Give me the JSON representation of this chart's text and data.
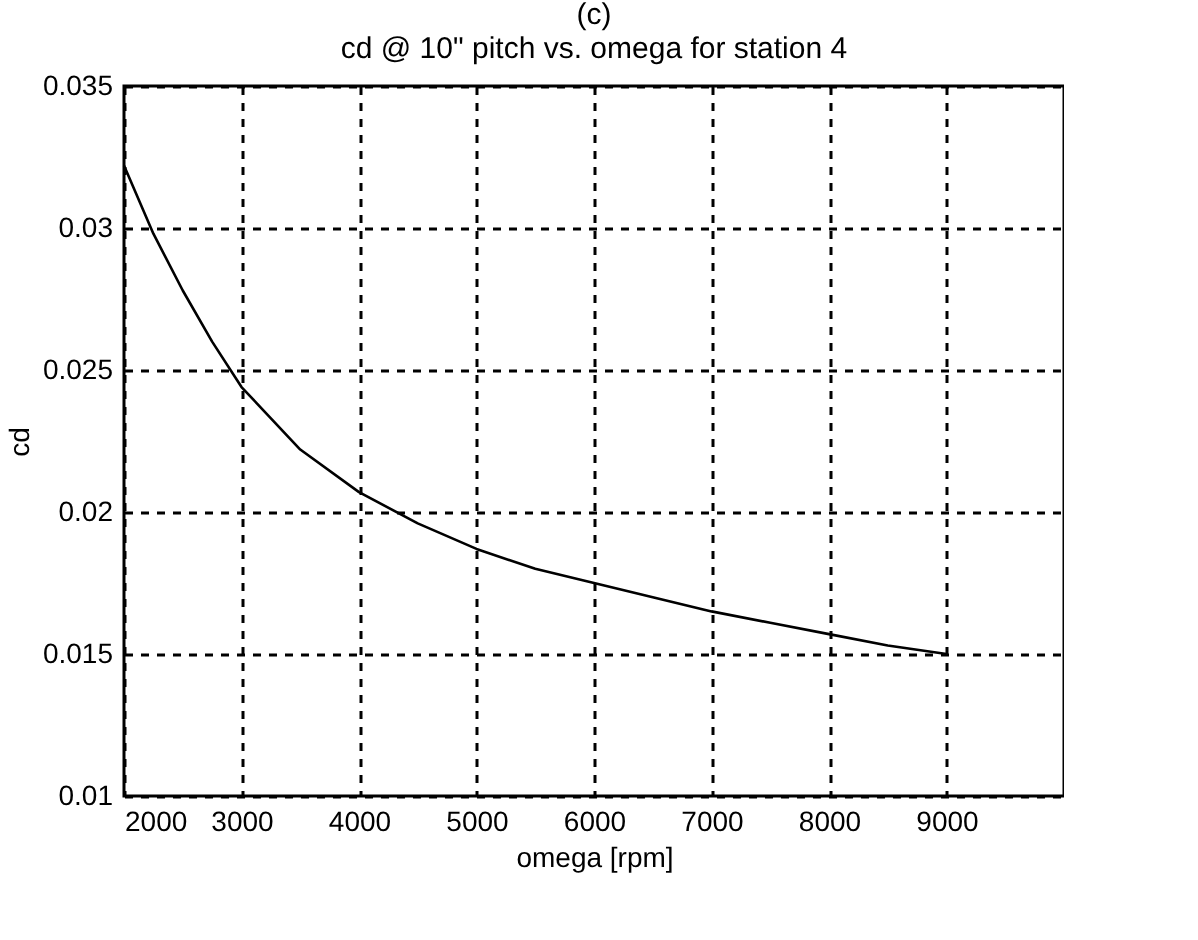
{
  "chart_data": {
    "type": "line",
    "title": "cd @ 10\" pitch vs. omega for station 4",
    "xlabel": "omega [rpm]",
    "ylabel": "cd",
    "annotations": [
      "(c)"
    ],
    "x": [
      2000,
      2250,
      2500,
      2750,
      3000,
      3500,
      4000,
      4500,
      5000,
      5500,
      6000,
      6500,
      7000,
      7500,
      8000,
      8500,
      9000
    ],
    "series": [
      {
        "color": "#000000",
        "values": [
          0.0322,
          0.0298,
          0.0278,
          0.026,
          0.0244,
          0.0222,
          0.0207,
          0.0196,
          0.0187,
          0.018,
          0.0175,
          0.017,
          0.0165,
          0.0161,
          0.0157,
          0.0153,
          0.015
        ]
      }
    ],
    "xlim": [
      2000,
      10000
    ],
    "xticks": [
      2000,
      3000,
      4000,
      5000,
      6000,
      7000,
      8000,
      9000
    ],
    "ylim": [
      0.01,
      0.035
    ],
    "yticks": [
      0.01,
      0.015,
      0.02,
      0.025,
      0.03,
      0.035
    ],
    "grid": true,
    "legend": false,
    "marker": "none",
    "line_style": "solid"
  }
}
